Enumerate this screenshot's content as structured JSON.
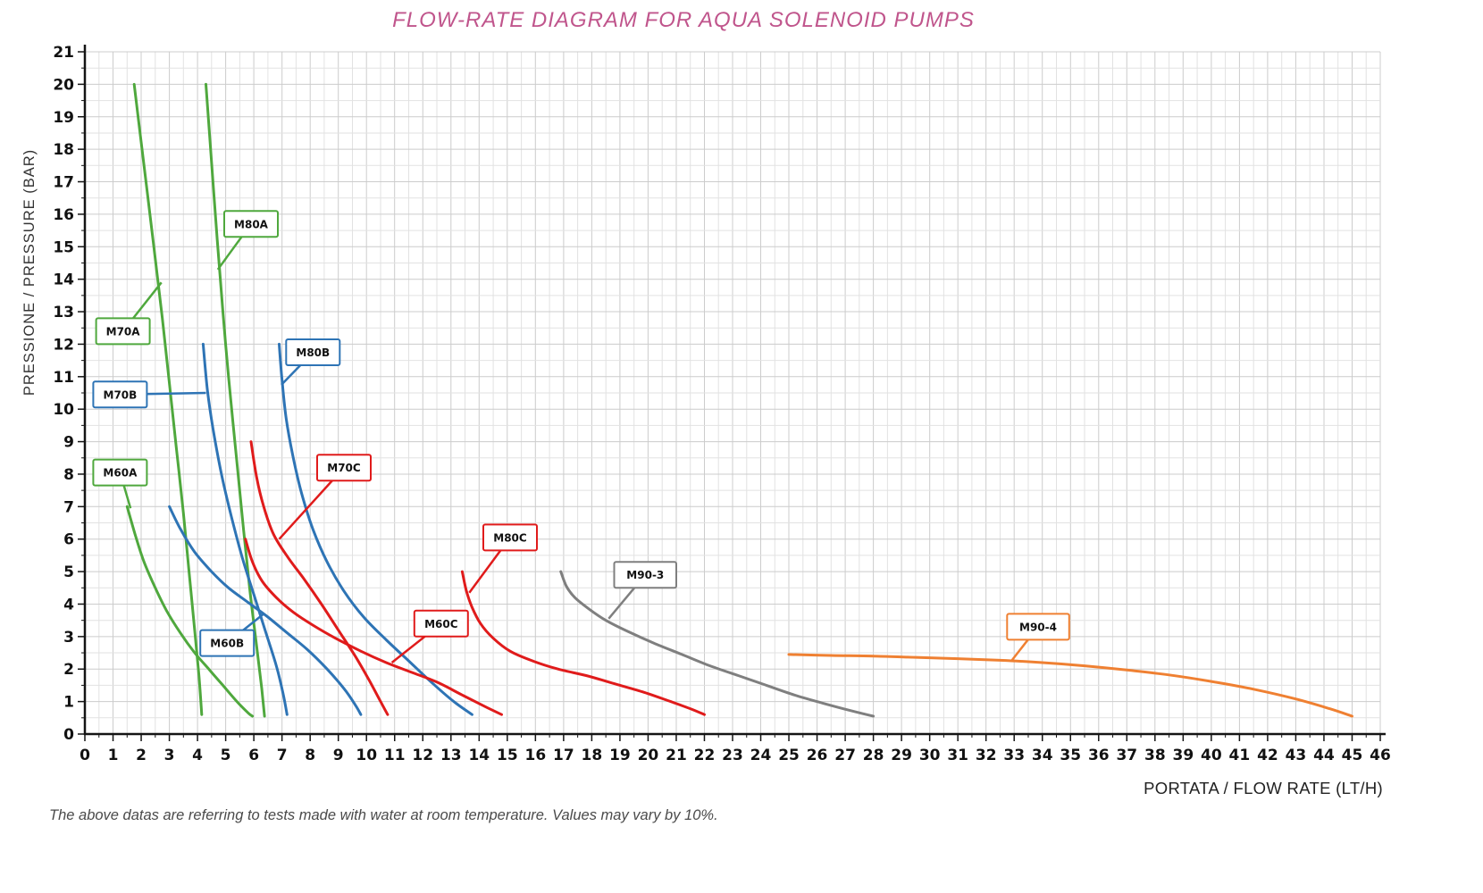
{
  "title": "FLOW-RATE DIAGRAM FOR AQUA SOLENOID PUMPS",
  "footnote": "The above datas are referring to tests made with water at room temperature. Values may vary by 10%.",
  "styles": {
    "title_color": "#c0558c",
    "axis_color": "#141414",
    "tick_label_color": "#111111",
    "grid_minor_color": "#e2e2e2",
    "grid_major_color": "#cccccc",
    "footnote_color": "#4a4a4a"
  },
  "chart_data": {
    "type": "line",
    "title": "FLOW-RATE DIAGRAM FOR AQUA SOLENOID PUMPS",
    "xlabel": "PORTATA / FLOW RATE (LT/H)",
    "ylabel": "PRESSIONE / PRESSURE (BAR)",
    "xlim": [
      0,
      46
    ],
    "ylim": [
      0,
      21
    ],
    "x_tick_step": 1,
    "y_tick_step": 1,
    "grid_minor_step": 0.5,
    "grid": true,
    "legend_position": "callout-boxes-on-curves",
    "x_unit": "LT/H",
    "y_unit": "BAR",
    "series": [
      {
        "name": "M60A",
        "color": "#4fa83d",
        "points": [
          [
            1.5,
            7.0
          ],
          [
            1.8,
            6.1
          ],
          [
            2.1,
            5.3
          ],
          [
            2.5,
            4.5
          ],
          [
            2.9,
            3.8
          ],
          [
            3.4,
            3.1
          ],
          [
            3.9,
            2.5
          ],
          [
            4.4,
            2.0
          ],
          [
            4.9,
            1.5
          ],
          [
            5.4,
            1.0
          ],
          [
            5.8,
            0.65
          ],
          [
            5.95,
            0.55
          ]
        ],
        "callout": {
          "box_x": 1.25,
          "box_y": 8.05,
          "anchor_x": 1.62,
          "anchor_y": 6.95
        }
      },
      {
        "name": "M70A",
        "color": "#4fa83d",
        "points": [
          [
            1.75,
            20.0
          ],
          [
            2.1,
            17.5
          ],
          [
            2.45,
            15.0
          ],
          [
            2.75,
            12.8
          ],
          [
            3.0,
            10.8
          ],
          [
            3.25,
            8.8
          ],
          [
            3.5,
            6.8
          ],
          [
            3.7,
            5.0
          ],
          [
            3.9,
            3.2
          ],
          [
            4.05,
            1.8
          ],
          [
            4.15,
            0.6
          ]
        ],
        "callout": {
          "box_x": 1.35,
          "box_y": 12.4,
          "anchor_x": 2.72,
          "anchor_y": 13.9
        }
      },
      {
        "name": "M80A",
        "color": "#4fa83d",
        "points": [
          [
            4.3,
            20.0
          ],
          [
            4.5,
            17.6
          ],
          [
            4.7,
            15.2
          ],
          [
            4.9,
            13.0
          ],
          [
            5.1,
            11.0
          ],
          [
            5.35,
            8.8
          ],
          [
            5.6,
            6.6
          ],
          [
            5.85,
            4.5
          ],
          [
            6.1,
            2.7
          ],
          [
            6.28,
            1.4
          ],
          [
            6.38,
            0.55
          ]
        ],
        "callout": {
          "box_x": 5.9,
          "box_y": 15.7,
          "anchor_x": 4.72,
          "anchor_y": 14.3
        }
      },
      {
        "name": "M60B",
        "color": "#2e74b5",
        "points": [
          [
            3.0,
            7.0
          ],
          [
            3.4,
            6.3
          ],
          [
            3.9,
            5.6
          ],
          [
            4.5,
            5.0
          ],
          [
            5.1,
            4.5
          ],
          [
            5.8,
            4.05
          ],
          [
            6.5,
            3.6
          ],
          [
            7.2,
            3.1
          ],
          [
            7.9,
            2.6
          ],
          [
            8.6,
            2.0
          ],
          [
            9.2,
            1.4
          ],
          [
            9.6,
            0.9
          ],
          [
            9.8,
            0.6
          ]
        ],
        "callout": {
          "box_x": 5.05,
          "box_y": 2.8,
          "anchor_x": 6.35,
          "anchor_y": 3.7
        }
      },
      {
        "name": "M70B",
        "color": "#2e74b5",
        "points": [
          [
            4.2,
            12.0
          ],
          [
            4.35,
            10.6
          ],
          [
            4.55,
            9.4
          ],
          [
            4.85,
            8.0
          ],
          [
            5.2,
            6.7
          ],
          [
            5.6,
            5.4
          ],
          [
            6.0,
            4.3
          ],
          [
            6.4,
            3.2
          ],
          [
            6.8,
            2.1
          ],
          [
            7.05,
            1.2
          ],
          [
            7.18,
            0.6
          ]
        ],
        "callout": {
          "box_x": 1.25,
          "box_y": 10.45,
          "anchor_x": 4.3,
          "anchor_y": 10.5
        }
      },
      {
        "name": "M80B",
        "color": "#2e74b5",
        "points": [
          [
            6.9,
            12.0
          ],
          [
            7.0,
            10.9
          ],
          [
            7.15,
            9.7
          ],
          [
            7.4,
            8.5
          ],
          [
            7.7,
            7.4
          ],
          [
            8.1,
            6.3
          ],
          [
            8.6,
            5.3
          ],
          [
            9.2,
            4.4
          ],
          [
            9.9,
            3.6
          ],
          [
            10.7,
            2.9
          ],
          [
            11.5,
            2.25
          ],
          [
            12.3,
            1.6
          ],
          [
            13.1,
            1.0
          ],
          [
            13.75,
            0.6
          ]
        ],
        "callout": {
          "box_x": 8.1,
          "box_y": 11.75,
          "anchor_x": 6.98,
          "anchor_y": 10.75
        }
      },
      {
        "name": "M60C",
        "color": "#e01b1b",
        "points": [
          [
            5.7,
            6.0
          ],
          [
            5.95,
            5.3
          ],
          [
            6.3,
            4.7
          ],
          [
            6.8,
            4.2
          ],
          [
            7.4,
            3.75
          ],
          [
            8.1,
            3.35
          ],
          [
            8.9,
            2.95
          ],
          [
            9.8,
            2.55
          ],
          [
            10.7,
            2.2
          ],
          [
            11.6,
            1.9
          ],
          [
            12.5,
            1.6
          ],
          [
            13.4,
            1.2
          ],
          [
            14.2,
            0.85
          ],
          [
            14.8,
            0.6
          ]
        ],
        "callout": {
          "box_x": 12.65,
          "box_y": 3.4,
          "anchor_x": 10.9,
          "anchor_y": 2.2
        }
      },
      {
        "name": "M70C",
        "color": "#e01b1b",
        "points": [
          [
            5.9,
            9.0
          ],
          [
            6.1,
            7.9
          ],
          [
            6.35,
            7.0
          ],
          [
            6.7,
            6.15
          ],
          [
            7.2,
            5.45
          ],
          [
            7.8,
            4.75
          ],
          [
            8.4,
            4.0
          ],
          [
            9.0,
            3.2
          ],
          [
            9.6,
            2.4
          ],
          [
            10.1,
            1.65
          ],
          [
            10.5,
            1.0
          ],
          [
            10.75,
            0.6
          ]
        ],
        "callout": {
          "box_x": 9.2,
          "box_y": 8.2,
          "anchor_x": 6.9,
          "anchor_y": 6.0
        }
      },
      {
        "name": "M80C",
        "color": "#e01b1b",
        "points": [
          [
            13.4,
            5.0
          ],
          [
            13.55,
            4.4
          ],
          [
            13.75,
            3.9
          ],
          [
            14.05,
            3.4
          ],
          [
            14.5,
            2.95
          ],
          [
            15.1,
            2.55
          ],
          [
            15.9,
            2.25
          ],
          [
            16.8,
            2.0
          ],
          [
            17.8,
            1.8
          ],
          [
            18.8,
            1.55
          ],
          [
            19.8,
            1.3
          ],
          [
            20.8,
            1.0
          ],
          [
            21.5,
            0.78
          ],
          [
            22.0,
            0.6
          ]
        ],
        "callout": {
          "box_x": 15.1,
          "box_y": 6.05,
          "anchor_x": 13.65,
          "anchor_y": 4.35
        }
      },
      {
        "name": "M90-3",
        "color": "#7f7f7f",
        "points": [
          [
            16.9,
            5.0
          ],
          [
            17.1,
            4.55
          ],
          [
            17.4,
            4.2
          ],
          [
            17.9,
            3.85
          ],
          [
            18.5,
            3.5
          ],
          [
            19.3,
            3.15
          ],
          [
            20.2,
            2.8
          ],
          [
            21.2,
            2.45
          ],
          [
            22.2,
            2.1
          ],
          [
            23.2,
            1.8
          ],
          [
            24.2,
            1.5
          ],
          [
            25.2,
            1.2
          ],
          [
            26.2,
            0.95
          ],
          [
            27.2,
            0.72
          ],
          [
            28.0,
            0.55
          ]
        ],
        "callout": {
          "box_x": 19.9,
          "box_y": 4.9,
          "anchor_x": 18.6,
          "anchor_y": 3.55
        }
      },
      {
        "name": "M90-4",
        "color": "#ef8032",
        "points": [
          [
            25.0,
            2.45
          ],
          [
            26.5,
            2.42
          ],
          [
            28.0,
            2.4
          ],
          [
            29.5,
            2.36
          ],
          [
            31.0,
            2.32
          ],
          [
            32.5,
            2.27
          ],
          [
            34.0,
            2.2
          ],
          [
            35.5,
            2.1
          ],
          [
            37.0,
            1.97
          ],
          [
            38.5,
            1.82
          ],
          [
            40.0,
            1.62
          ],
          [
            41.5,
            1.38
          ],
          [
            43.0,
            1.08
          ],
          [
            44.2,
            0.78
          ],
          [
            45.0,
            0.55
          ]
        ],
        "callout": {
          "box_x": 33.85,
          "box_y": 3.3,
          "anchor_x": 32.9,
          "anchor_y": 2.25
        }
      }
    ]
  }
}
